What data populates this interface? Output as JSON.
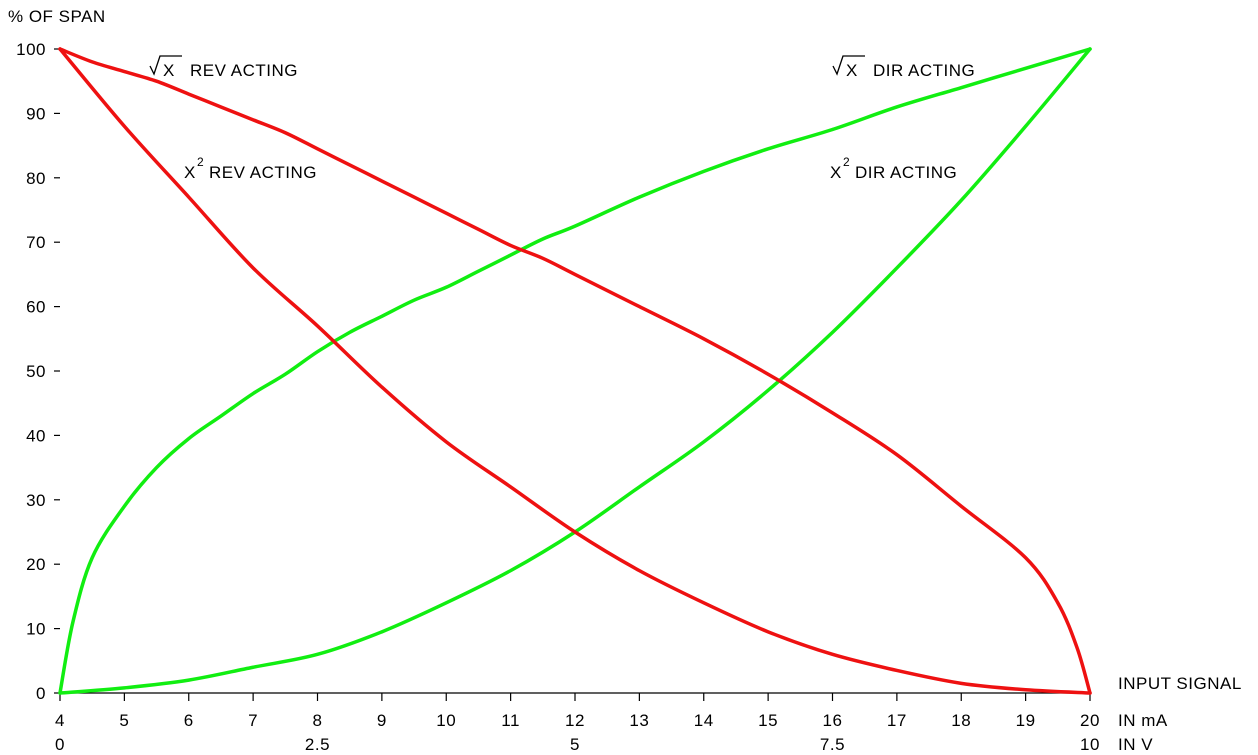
{
  "chart_data": {
    "type": "line",
    "ylabel": "% OF SPAN",
    "xlabel": "INPUT SIGNAL",
    "x_unit_ma": "IN mA",
    "x_unit_v": "IN V",
    "ylim": [
      0,
      100
    ],
    "xlim_ma": [
      4,
      20
    ],
    "y_ticks": [
      "0",
      "10",
      "20",
      "30",
      "40",
      "50",
      "60",
      "70",
      "80",
      "90",
      "100"
    ],
    "x_ticks_ma": [
      "4",
      "5",
      "6",
      "7",
      "8",
      "9",
      "10",
      "11",
      "12",
      "13",
      "14",
      "15",
      "16",
      "17",
      "18",
      "19",
      "20"
    ],
    "x_ticks_v": [
      "0",
      "2.5",
      "5",
      "7.5",
      "10"
    ],
    "grid": false,
    "colors": {
      "rev": "#ee1111",
      "dir": "#11ee11",
      "axis": "#000000"
    },
    "annotations": {
      "sqrt_rev": "REV ACTING",
      "x2_rev": "REV ACTING",
      "sqrt_dir": "DIR ACTING",
      "x2_dir": "DIR ACTING",
      "sqrt_symbol": "X",
      "x2_symbol": "X",
      "x2_exponent": "2"
    },
    "series": [
      {
        "color_key": "dir",
        "x": [
          4,
          4.2,
          4.5,
          5,
          5.5,
          6,
          6.5,
          7,
          7.5,
          8,
          8.5,
          9,
          9.5,
          10,
          10.5,
          11,
          11.5,
          12,
          13,
          14,
          15,
          16,
          17,
          18,
          19,
          20
        ],
        "y": [
          0,
          11,
          21,
          29,
          35,
          39.5,
          43,
          46.5,
          49.5,
          53,
          56,
          58.5,
          61,
          63,
          65.5,
          68,
          70.5,
          72.5,
          77,
          81,
          84.5,
          87.5,
          91,
          94,
          97,
          100
        ]
      },
      {
        "color_key": "dir",
        "x": [
          4,
          5,
          6,
          7,
          8,
          9,
          10,
          11,
          12,
          13,
          14,
          15,
          16,
          17,
          18,
          19,
          20
        ],
        "y": [
          0,
          0.8,
          2,
          4,
          6,
          9.5,
          14,
          19,
          25,
          32,
          39,
          47,
          56,
          66,
          76.5,
          88,
          100
        ]
      },
      {
        "color_key": "rev",
        "x": [
          4,
          4.5,
          5,
          5.5,
          6,
          6.5,
          7,
          7.5,
          8,
          8.5,
          9,
          9.5,
          10,
          10.5,
          11,
          11.5,
          12,
          13,
          14,
          15,
          16,
          17,
          18,
          19,
          19.5,
          19.8,
          20
        ],
        "y": [
          100,
          98,
          96.5,
          95,
          93,
          91,
          89,
          87,
          84.5,
          82,
          79.5,
          77,
          74.5,
          72,
          69.5,
          67.5,
          65,
          60,
          55,
          49.5,
          43.5,
          37,
          29,
          21,
          14,
          7,
          0
        ]
      },
      {
        "color_key": "rev",
        "x": [
          4,
          5,
          6,
          7,
          8,
          9,
          10,
          11,
          12,
          13,
          14,
          15,
          16,
          17,
          18,
          19,
          20
        ],
        "y": [
          100,
          88,
          77,
          66,
          57,
          47.5,
          39,
          32,
          25,
          19,
          14,
          9.5,
          6,
          3.5,
          1.5,
          0.5,
          0
        ]
      }
    ]
  }
}
